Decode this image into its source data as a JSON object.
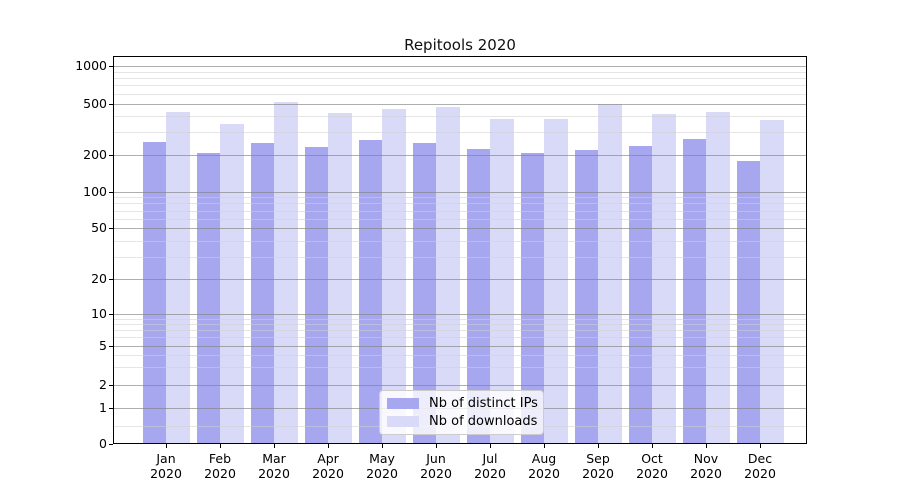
{
  "colors": {
    "bar_distinct_ips": "#a7a7f0",
    "bar_downloads": "#d9d9f8",
    "grid_major": "#828282",
    "grid_minor": "#cfcfcf",
    "axis": "#000000",
    "legend_border": "#cccccc",
    "legend_background": "#ffffff"
  },
  "chart_data": {
    "type": "bar",
    "title": "Repitools 2020",
    "categories": [
      "Jan 2020",
      "Feb 2020",
      "Mar 2020",
      "Apr 2020",
      "May 2020",
      "Jun 2020",
      "Jul 2020",
      "Aug 2020",
      "Sep 2020",
      "Oct 2020",
      "Nov 2020",
      "Dec 2020"
    ],
    "series": [
      {
        "name": "Nb of distinct IPs",
        "color": "#a7a7f0",
        "values": [
          250,
          204,
          247,
          229,
          261,
          247,
          219,
          204,
          215,
          232,
          265,
          178
        ]
      },
      {
        "name": "Nb of downloads",
        "color": "#d9d9f8",
        "values": [
          430,
          346,
          516,
          421,
          447,
          464,
          378,
          378,
          497,
          409,
          426,
          373
        ]
      }
    ],
    "yscale": "symlog",
    "ylim": [
      0,
      1200
    ],
    "yticks": [
      0,
      1,
      2,
      5,
      10,
      20,
      50,
      100,
      200,
      500,
      1000
    ],
    "ytick_labels": [
      "0",
      "1",
      "2",
      "5",
      "10",
      "20",
      "50",
      "100",
      "200",
      "500",
      "1000"
    ],
    "yticks_minor": [
      0.5,
      3,
      4,
      6,
      7,
      8,
      9,
      30,
      40,
      60,
      70,
      80,
      90,
      300,
      400,
      600,
      700,
      800,
      900
    ],
    "grid": true,
    "legend_position": "inside lower center"
  }
}
